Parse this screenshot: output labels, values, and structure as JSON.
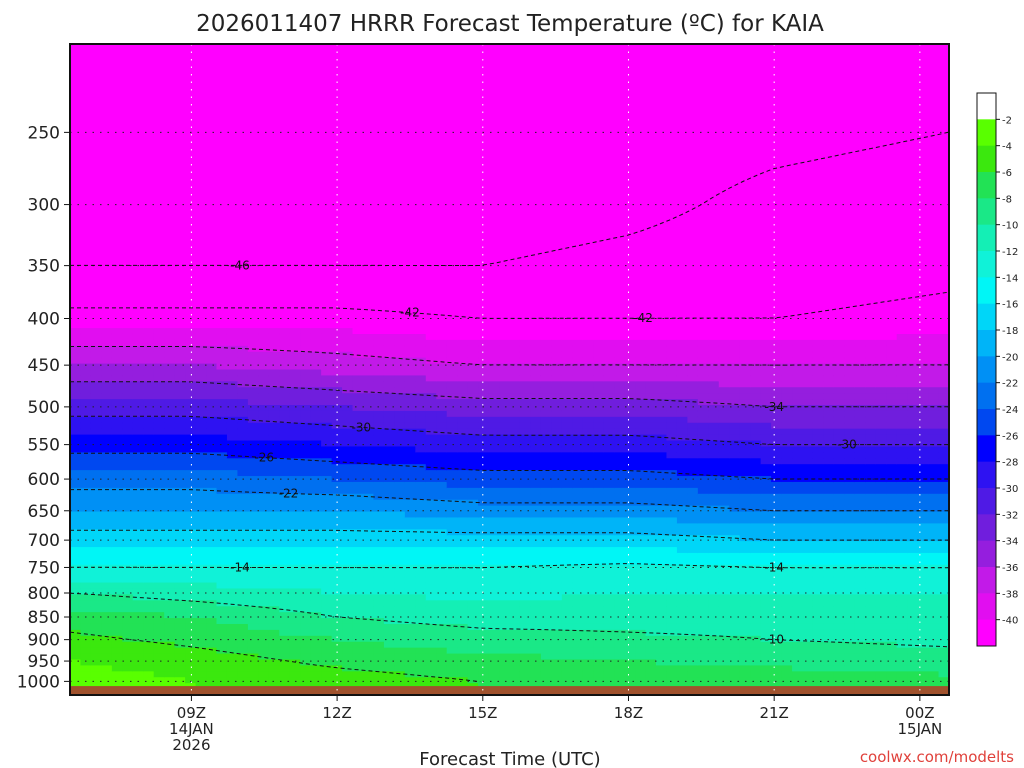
{
  "chart_data": {
    "type": "heatmap",
    "title": "2026011407 HRRR Forecast Temperature (ºC) for KAIA",
    "xlabel": "Forecast Time (UTC)",
    "ylabel": "",
    "y_scale": "log",
    "y_inverted": true,
    "ylim_hPa": [
      1035,
      200
    ],
    "y_ticks": [
      250,
      300,
      350,
      400,
      450,
      500,
      550,
      600,
      650,
      700,
      750,
      800,
      850,
      900,
      950,
      1000
    ],
    "xlim_hours": [
      6.5,
      24.6
    ],
    "x_ticks": [
      {
        "hour": 9,
        "lines": [
          "09Z",
          "14JAN",
          "2026"
        ]
      },
      {
        "hour": 12,
        "lines": [
          "12Z"
        ]
      },
      {
        "hour": 15,
        "lines": [
          "15Z"
        ]
      },
      {
        "hour": 18,
        "lines": [
          "18Z"
        ]
      },
      {
        "hour": 21,
        "lines": [
          "21Z"
        ]
      },
      {
        "hour": 24,
        "lines": [
          "00Z",
          "15JAN"
        ]
      }
    ],
    "grid": true,
    "colorbar": {
      "levels": [
        -2,
        -4,
        -6,
        -8,
        -10,
        -12,
        -14,
        -16,
        -18,
        -20,
        -22,
        -24,
        -26,
        -28,
        -30,
        -32,
        -34,
        -36,
        -38,
        -40
      ],
      "colors": [
        "#ffffff",
        "#59ff00",
        "#3be80e",
        "#22e255",
        "#1ae887",
        "#14efb5",
        "#10f2d8",
        "#00f6f6",
        "#00d6f8",
        "#00b4f8",
        "#0090f5",
        "#0070f0",
        "#0048f0",
        "#0000ff",
        "#2e12f2",
        "#4f1ae5",
        "#701edd",
        "#951ede",
        "#c21ae8",
        "#e10ef0",
        "#ff00ff"
      ]
    },
    "temperature_profile": {
      "hours": [
        6.5,
        9,
        12,
        15,
        18,
        21,
        24.6
      ],
      "levels_hPa": [
        1000,
        950,
        900,
        850,
        800,
        750,
        700,
        650,
        600,
        550,
        500,
        450,
        400,
        350,
        300,
        250,
        200
      ],
      "values_C": [
        [
          -3,
          -4,
          -5.5,
          -7,
          -10,
          -14,
          -17,
          -20,
          -23,
          -27,
          -31,
          -36,
          -41,
          -46,
          -48,
          -49,
          -49
        ],
        [
          -4,
          -5,
          -6.5,
          -8,
          -11,
          -14,
          -17,
          -20,
          -23,
          -27,
          -31,
          -36,
          -41,
          -46,
          -48,
          -49,
          -49
        ],
        [
          -5,
          -6.5,
          -8,
          -10,
          -12,
          -14,
          -17,
          -20,
          -24,
          -28,
          -32,
          -37,
          -41,
          -46,
          -48,
          -49,
          -49
        ],
        [
          -6,
          -7.5,
          -9,
          -11,
          -12.5,
          -14,
          -17,
          -21,
          -25,
          -29,
          -33,
          -38,
          -42,
          -46,
          -48,
          -49,
          -49
        ],
        [
          -6.5,
          -8,
          -9.5,
          -11,
          -12,
          -13.5,
          -17,
          -21,
          -25,
          -29,
          -33,
          -38,
          -42,
          -45,
          -47,
          -48,
          -49
        ],
        [
          -7,
          -8.5,
          -10,
          -11,
          -12,
          -14,
          -18,
          -22,
          -26,
          -30,
          -34,
          -38,
          -42,
          -44,
          -45,
          -47,
          -48
        ],
        [
          -7.5,
          -9,
          -10.5,
          -11,
          -12,
          -14,
          -18,
          -22,
          -26,
          -30,
          -34,
          -38,
          -41,
          -43,
          -44,
          -46,
          -47
        ]
      ]
    },
    "contour_labels": [
      "-46",
      "-42",
      "-42",
      "-30",
      "-34",
      "-26",
      "-30",
      "-22",
      "-14",
      "-14",
      "-10"
    ]
  },
  "credit": "coolwx.com/modelts"
}
